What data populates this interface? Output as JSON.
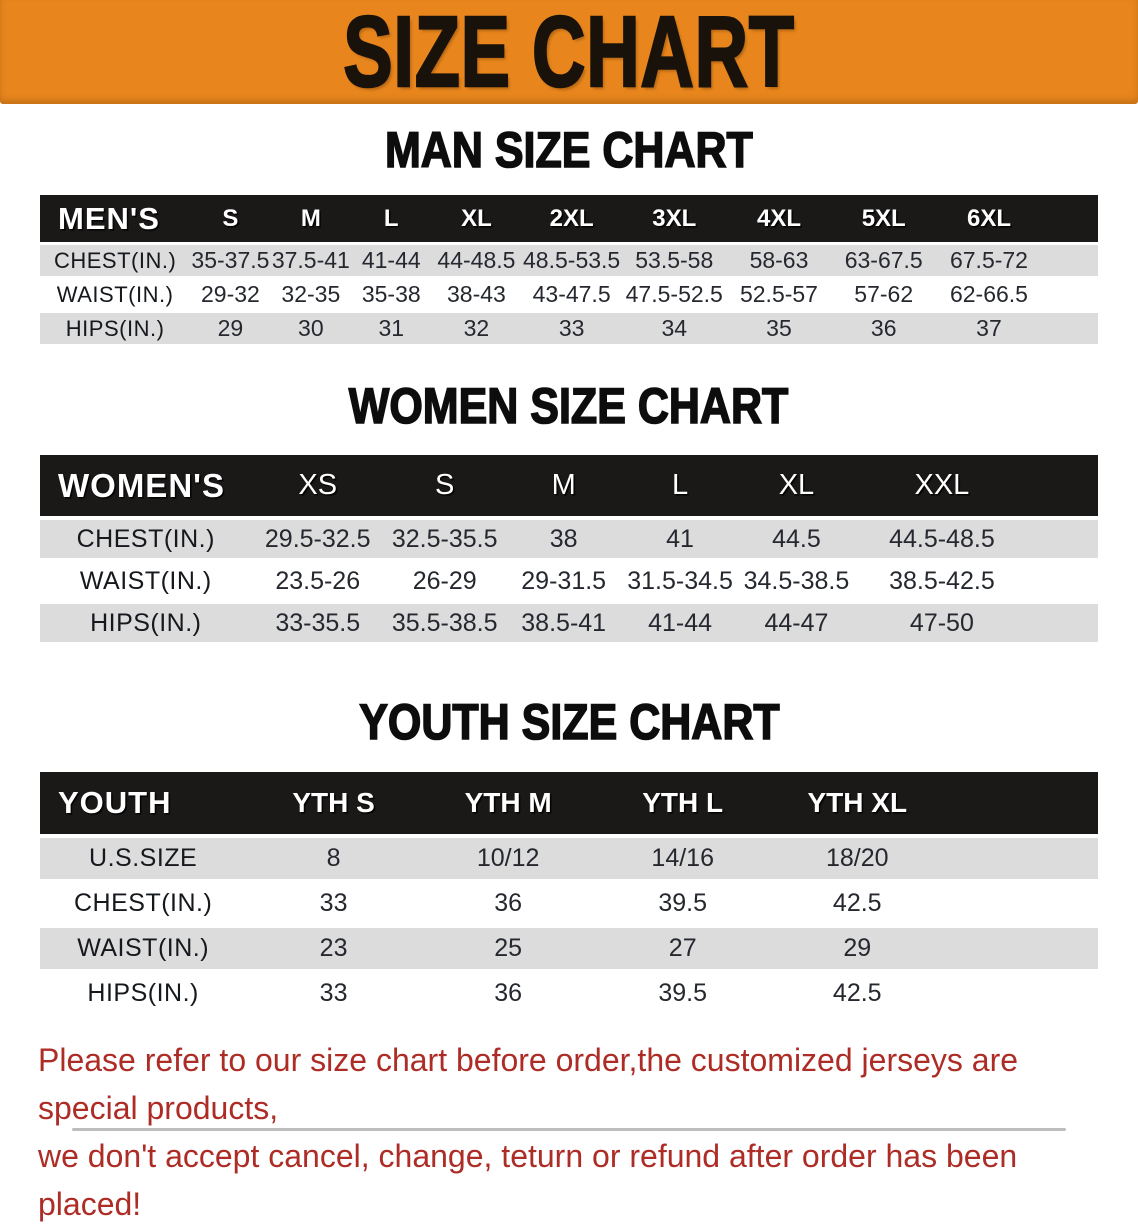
{
  "banner": {
    "title": "SIZE CHART"
  },
  "colors": {
    "banner_orange": "#e8861d",
    "header_bar_black": "#1b1918",
    "row_gray": "#dcdcdd",
    "footer_red": "#ad2d26"
  },
  "sections": {
    "men": {
      "heading": "MAN SIZE CHART",
      "group_label": "MEN'S",
      "columns": [
        "S",
        "M",
        "L",
        "XL",
        "2XL",
        "3XL",
        "4XL",
        "5XL",
        "6XL"
      ],
      "rows": [
        {
          "label": "CHEST(IN.)",
          "values": [
            "35-37.5",
            "37.5-41",
            "41-44",
            "44-48.5",
            "48.5-53.5",
            "53.5-58",
            "58-63",
            "63-67.5",
            "67.5-72"
          ]
        },
        {
          "label": "WAIST(IN.)",
          "values": [
            "29-32",
            "32-35",
            "35-38",
            "38-43",
            "43-47.5",
            "47.5-52.5",
            "52.5-57",
            "57-62",
            "62-66.5"
          ]
        },
        {
          "label": "HIPS(IN.)",
          "values": [
            "29",
            "30",
            "31",
            "32",
            "33",
            "34",
            "35",
            "36",
            "37"
          ]
        }
      ]
    },
    "women": {
      "heading": "WOMEN SIZE CHART",
      "group_label": "WOMEN'S",
      "columns": [
        "XS",
        "S",
        "M",
        "L",
        "XL",
        "XXL"
      ],
      "rows": [
        {
          "label": "CHEST(IN.)",
          "values": [
            "29.5-32.5",
            "32.5-35.5",
            "38",
            "41",
            "44.5",
            "44.5-48.5"
          ]
        },
        {
          "label": "WAIST(IN.)",
          "values": [
            "23.5-26",
            "26-29",
            "29-31.5",
            "31.5-34.5",
            "34.5-38.5",
            "38.5-42.5"
          ]
        },
        {
          "label": "HIPS(IN.)",
          "values": [
            "33-35.5",
            "35.5-38.5",
            "38.5-41",
            "41-44",
            "44-47",
            "47-50"
          ]
        }
      ]
    },
    "youth": {
      "heading": "YOUTH SIZE CHART",
      "group_label": "YOUTH",
      "columns": [
        "YTH S",
        "YTH M",
        "YTH L",
        "YTH XL"
      ],
      "rows": [
        {
          "label": "U.S.SIZE",
          "values": [
            "8",
            "10/12",
            "14/16",
            "18/20"
          ]
        },
        {
          "label": "CHEST(IN.)",
          "values": [
            "33",
            "36",
            "39.5",
            "42.5"
          ]
        },
        {
          "label": "WAIST(IN.)",
          "values": [
            "23",
            "25",
            "27",
            "29"
          ]
        },
        {
          "label": "HIPS(IN.)",
          "values": [
            "33",
            "36",
            "39.5",
            "42.5"
          ]
        }
      ]
    }
  },
  "footer": {
    "line1": "Please refer to our size chart before order,the customized jerseys are special products,",
    "line2": "we don't accept cancel, change, teturn or refund after order has been placed!"
  }
}
